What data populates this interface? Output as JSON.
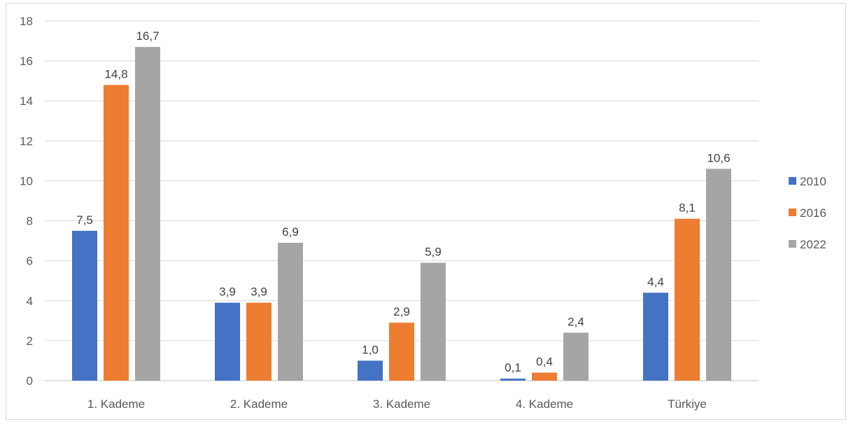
{
  "chart_data": {
    "type": "bar",
    "categories": [
      "1. Kademe",
      "2. Kademe",
      "3. Kademe",
      "4. Kademe",
      "Türkiye"
    ],
    "series": [
      {
        "name": "2010",
        "color": "#4472c4",
        "values": [
          7.5,
          3.9,
          1.0,
          0.1,
          4.4
        ],
        "labels": [
          "7,5",
          "3,9",
          "1,0",
          "0,1",
          "4,4"
        ]
      },
      {
        "name": "2016",
        "color": "#ed7d31",
        "values": [
          14.8,
          3.9,
          2.9,
          0.4,
          8.1
        ],
        "labels": [
          "14,8",
          "3,9",
          "2,9",
          "0,4",
          "8,1"
        ]
      },
      {
        "name": "2022",
        "color": "#a5a5a5",
        "values": [
          16.7,
          6.9,
          5.9,
          2.4,
          10.6
        ],
        "labels": [
          "16,7",
          "6,9",
          "5,9",
          "2,4",
          "10,6"
        ]
      }
    ],
    "title": "",
    "xlabel": "",
    "ylabel": "",
    "ylim": [
      0,
      18
    ],
    "yticks": [
      0,
      2,
      4,
      6,
      8,
      10,
      12,
      14,
      16,
      18
    ],
    "grid": true,
    "legend_position": "right"
  }
}
